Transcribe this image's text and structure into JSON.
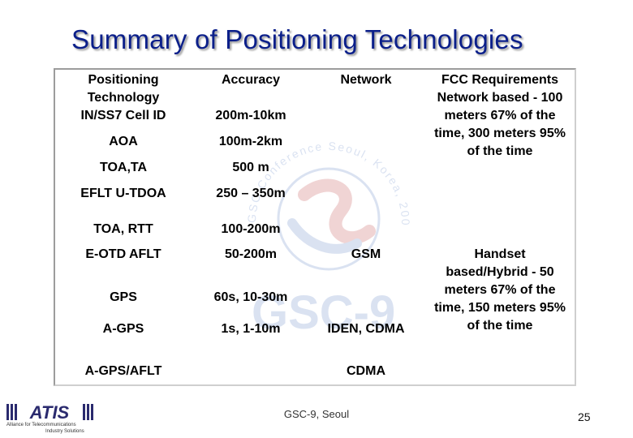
{
  "slide": {
    "title": "Summary of Positioning Technologies",
    "footer": "GSC-9, Seoul",
    "page_number": "25"
  },
  "table": {
    "headers": {
      "technology": "Positioning Technology",
      "accuracy": "Accuracy",
      "network": "Network"
    },
    "rows": [
      {
        "technology": "IN/SS7 Cell ID",
        "accuracy": "200m-10km",
        "network": ""
      },
      {
        "technology": "AOA",
        "accuracy": "100m-2km",
        "network": ""
      },
      {
        "technology": "TOA,TA",
        "accuracy": "500 m",
        "network": ""
      },
      {
        "technology": "EFLT U-TDOA",
        "accuracy": "250 – 350m",
        "network": ""
      },
      {
        "technology": "TOA, RTT",
        "accuracy": "100-200m",
        "network": ""
      },
      {
        "technology": "E-OTD AFLT",
        "accuracy": "50-200m",
        "network": "GSM"
      },
      {
        "technology": "GPS",
        "accuracy": "60s, 10-30m",
        "network": ""
      },
      {
        "technology": "A-GPS",
        "accuracy": "1s, 1-10m",
        "network": "IDEN, CDMA"
      },
      {
        "technology": "A-GPS/AFLT",
        "accuracy": "",
        "network": "CDMA"
      }
    ],
    "fcc_network": "FCC Requirements Network based - 100 meters 67% of the time, 300 meters 95% of the time",
    "fcc_handset": "Handset based/Hybrid - 50 meters 67% of the time, 150 meters 95% of the time"
  },
  "watermark": {
    "arc_text": "GSC Conference Seoul, Korea, 2004",
    "logo_text": "GSC-9"
  },
  "logo": {
    "brand": "ATIS",
    "line1": "Alliance for Telecommunications",
    "line2": "Industry Solutions"
  },
  "colors": {
    "title": "#0b1f8a",
    "watermark": "#5a7fc4",
    "logo": "#2a2a6e"
  }
}
